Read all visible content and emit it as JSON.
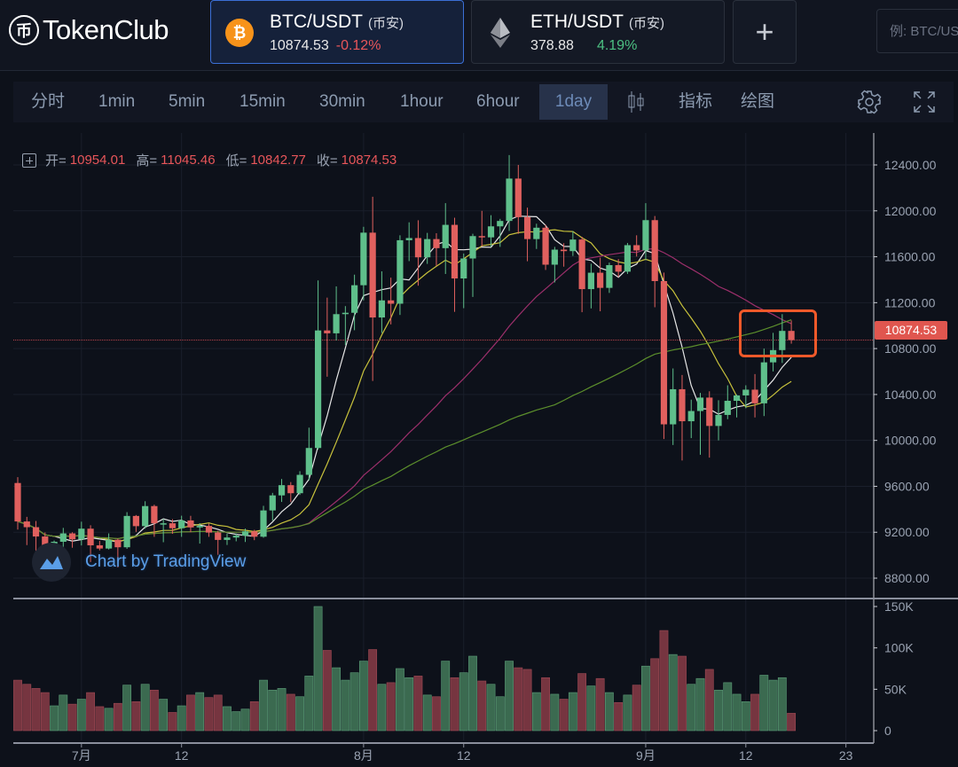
{
  "header": {
    "logo_text": "TokenClub",
    "logo_mark": "币",
    "pairs": [
      {
        "name": "BTC/USDT",
        "exchange": "(币安)",
        "price": "10874.53",
        "change": "-0.12%",
        "change_color": "#e8565a",
        "icon": "bitcoin-icon",
        "icon_color": "#f7931a",
        "active": true
      },
      {
        "name": "ETH/USDT",
        "exchange": "(币安)",
        "price": "378.88",
        "change": "4.19%",
        "change_color": "#4cc082",
        "icon": "ethereum-icon",
        "active": false
      }
    ],
    "add_label": "+",
    "search_placeholder": "例: BTC/USDT"
  },
  "toolbar": {
    "intervals": [
      "分时",
      "1min",
      "5min",
      "15min",
      "30min",
      "1hour",
      "6hour",
      "1day"
    ],
    "active_interval": "1day",
    "indicators_label": "指标",
    "drawing_label": "绘图"
  },
  "legend": {
    "open_label": "开=",
    "open": "10954.01",
    "high_label": "高=",
    "high": "11045.46",
    "low_label": "低=",
    "low": "10842.77",
    "close_label": "收=",
    "close": "10874.53"
  },
  "watermark": "Chart by TradingView",
  "colors": {
    "up": "#5fbf8b",
    "down": "#e0605e",
    "vol_up": "#3b6a50",
    "vol_down": "#763540",
    "ma_lines": [
      "#e6e6e6",
      "#c8c23c",
      "#9c2f6b",
      "#5c8f2c"
    ],
    "highlight": "#f0592a"
  },
  "chart_data": {
    "type": "candlestick",
    "last_price": "10874.53",
    "price_ticks": [
      "12400.00",
      "12000.00",
      "11600.00",
      "11200.00",
      "10800.00",
      "10400.00",
      "10000.00",
      "9600.00",
      "9200.00",
      "8800.00"
    ],
    "volume_ticks": [
      "150K",
      "100K",
      "50K",
      "0"
    ],
    "x_ticks": [
      {
        "label": "7月",
        "date": "7/1"
      },
      {
        "label": "12",
        "date": "7/12"
      },
      {
        "label": "8月",
        "date": "8/1"
      },
      {
        "label": "12",
        "date": "8/12"
      },
      {
        "label": "9月",
        "date": "9/1"
      },
      {
        "label": "12",
        "date": "9/12"
      },
      {
        "label": "23",
        "date": "9/23"
      }
    ],
    "ylim": [
      8700,
      12550
    ],
    "volume_ylim": [
      0,
      150000
    ],
    "moving_averages": [
      5,
      10,
      30,
      60
    ],
    "dates": [
      "6/24",
      "6/25",
      "6/26",
      "6/27",
      "6/28",
      "6/29",
      "6/30",
      "7/1",
      "7/2",
      "7/3",
      "7/4",
      "7/5",
      "7/6",
      "7/7",
      "7/8",
      "7/9",
      "7/10",
      "7/11",
      "7/12",
      "7/13",
      "7/14",
      "7/15",
      "7/16",
      "7/17",
      "7/18",
      "7/19",
      "7/20",
      "7/21",
      "7/22",
      "7/23",
      "7/24",
      "7/25",
      "7/26",
      "7/27",
      "7/28",
      "7/29",
      "7/30",
      "7/31",
      "8/1",
      "8/2",
      "8/3",
      "8/4",
      "8/5",
      "8/6",
      "8/7",
      "8/8",
      "8/9",
      "8/10",
      "8/11",
      "8/12",
      "8/13",
      "8/14",
      "8/15",
      "8/16",
      "8/17",
      "8/18",
      "8/19",
      "8/20",
      "8/21",
      "8/22",
      "8/23",
      "8/24",
      "8/25",
      "8/26",
      "8/27",
      "8/28",
      "8/29",
      "8/30",
      "8/31",
      "9/1",
      "9/2",
      "9/3",
      "9/4",
      "9/5",
      "9/6",
      "9/7",
      "9/8",
      "9/9",
      "9/10",
      "9/11",
      "9/12",
      "9/13",
      "9/14",
      "9/15",
      "9/16",
      "9/17"
    ],
    "ohlc": [
      [
        9629,
        9680,
        9223,
        9294
      ],
      [
        9294,
        9334,
        9088,
        9244
      ],
      [
        9244,
        9298,
        8990,
        9163
      ],
      [
        9163,
        9198,
        8833,
        9006
      ],
      [
        9006,
        9128,
        8948,
        9117
      ],
      [
        9117,
        9238,
        9024,
        9190
      ],
      [
        9190,
        9200,
        9065,
        9138
      ],
      [
        9138,
        9292,
        9085,
        9231
      ],
      [
        9231,
        9261,
        8940,
        9086
      ],
      [
        9086,
        9125,
        9042,
        9058
      ],
      [
        9058,
        9190,
        9050,
        9135
      ],
      [
        9135,
        9145,
        8893,
        9069
      ],
      [
        9069,
        9375,
        9055,
        9342
      ],
      [
        9342,
        9350,
        9203,
        9253
      ],
      [
        9253,
        9470,
        9231,
        9428
      ],
      [
        9428,
        9440,
        9160,
        9278
      ],
      [
        9278,
        9317,
        9113,
        9278
      ],
      [
        9278,
        9314,
        9186,
        9235
      ],
      [
        9235,
        9344,
        9160,
        9303
      ],
      [
        9303,
        9343,
        9200,
        9242
      ],
      [
        9242,
        9279,
        9101,
        9255
      ],
      [
        9255,
        9275,
        9160,
        9197
      ],
      [
        9197,
        9212,
        9003,
        9133
      ],
      [
        9133,
        9187,
        9089,
        9154
      ],
      [
        9154,
        9190,
        9121,
        9170
      ],
      [
        9170,
        9232,
        9115,
        9208
      ],
      [
        9208,
        9221,
        9131,
        9161
      ],
      [
        9161,
        9430,
        9152,
        9390
      ],
      [
        9390,
        9543,
        9300,
        9521
      ],
      [
        9521,
        9664,
        9464,
        9610
      ],
      [
        9610,
        9637,
        9463,
        9540
      ],
      [
        9540,
        9732,
        9525,
        9700
      ],
      [
        9700,
        10111,
        9650,
        9934
      ],
      [
        9934,
        11394,
        9920,
        10958
      ],
      [
        10958,
        11244,
        10555,
        10933
      ],
      [
        10933,
        11342,
        10870,
        11100
      ],
      [
        11100,
        11170,
        10831,
        11112
      ],
      [
        11112,
        11444,
        10960,
        11352
      ],
      [
        11352,
        11861,
        11220,
        11810
      ],
      [
        11810,
        12123,
        10518,
        11071
      ],
      [
        11071,
        11473,
        10936,
        11220
      ],
      [
        11220,
        11418,
        11011,
        11191
      ],
      [
        11191,
        11787,
        11093,
        11744
      ],
      [
        11744,
        11900,
        11562,
        11763
      ],
      [
        11763,
        11918,
        11348,
        11595
      ],
      [
        11595,
        11808,
        11538,
        11754
      ],
      [
        11754,
        11805,
        11520,
        11675
      ],
      [
        11675,
        12067,
        11450,
        11878
      ],
      [
        11878,
        11940,
        11120,
        11411
      ],
      [
        11411,
        11628,
        11152,
        11585
      ],
      [
        11585,
        11800,
        11250,
        11780
      ],
      [
        11780,
        12000,
        11690,
        11769
      ],
      [
        11769,
        11962,
        11686,
        11865
      ],
      [
        11865,
        11930,
        11686,
        11912
      ],
      [
        11912,
        12486,
        11825,
        12281
      ],
      [
        12281,
        12400,
        11800,
        11945
      ],
      [
        11945,
        12028,
        11561,
        11754
      ],
      [
        11754,
        11888,
        11668,
        11853
      ],
      [
        11853,
        11878,
        11485,
        11531
      ],
      [
        11531,
        11686,
        11376,
        11662
      ],
      [
        11662,
        11718,
        11514,
        11649
      ],
      [
        11649,
        11824,
        11607,
        11750
      ],
      [
        11750,
        11774,
        11117,
        11318
      ],
      [
        11318,
        11539,
        11150,
        11461
      ],
      [
        11461,
        11592,
        11125,
        11329
      ],
      [
        11329,
        11549,
        11285,
        11527
      ],
      [
        11527,
        11580,
        11423,
        11470
      ],
      [
        11470,
        11720,
        11450,
        11701
      ],
      [
        11701,
        11787,
        11602,
        11655
      ],
      [
        11655,
        12067,
        11570,
        11919
      ],
      [
        11919,
        11955,
        11160,
        11388
      ],
      [
        11388,
        11462,
        10012,
        10140
      ],
      [
        10140,
        10627,
        9960,
        10446
      ],
      [
        10446,
        10570,
        9825,
        10167
      ],
      [
        10167,
        10355,
        10020,
        10256
      ],
      [
        10256,
        10414,
        9875,
        10373
      ],
      [
        10373,
        10428,
        9850,
        10126
      ],
      [
        10126,
        10350,
        10000,
        10222
      ],
      [
        10222,
        10480,
        10185,
        10345
      ],
      [
        10345,
        10400,
        10200,
        10392
      ],
      [
        10392,
        10480,
        10280,
        10442
      ],
      [
        10442,
        10578,
        10200,
        10323
      ],
      [
        10323,
        10800,
        10212,
        10680
      ],
      [
        10680,
        10937,
        10601,
        10787
      ],
      [
        10787,
        11100,
        10675,
        10954
      ],
      [
        10954.01,
        11045.46,
        10842.77,
        10874.53
      ]
    ],
    "volumes": [
      61000,
      56000,
      51000,
      46000,
      30000,
      43000,
      32000,
      38000,
      46000,
      29000,
      27000,
      33000,
      55000,
      35000,
      56000,
      49000,
      38000,
      22000,
      30000,
      43000,
      46000,
      40000,
      43000,
      29000,
      23000,
      26000,
      35000,
      61000,
      49000,
      51000,
      44000,
      41000,
      66000,
      150000,
      97000,
      76000,
      61000,
      70000,
      84000,
      98000,
      56000,
      58000,
      75000,
      64000,
      66000,
      43000,
      41000,
      84000,
      64000,
      70000,
      90000,
      60000,
      56000,
      41000,
      84000,
      76000,
      74000,
      46000,
      64000,
      44000,
      38000,
      46000,
      69000,
      54000,
      63000,
      46000,
      34000,
      43000,
      55000,
      78000,
      87000,
      121000,
      92000,
      90000,
      56000,
      63000,
      74000,
      49000,
      58000,
      44000,
      35000,
      44000,
      67000,
      61000,
      64000,
      21000
    ]
  }
}
